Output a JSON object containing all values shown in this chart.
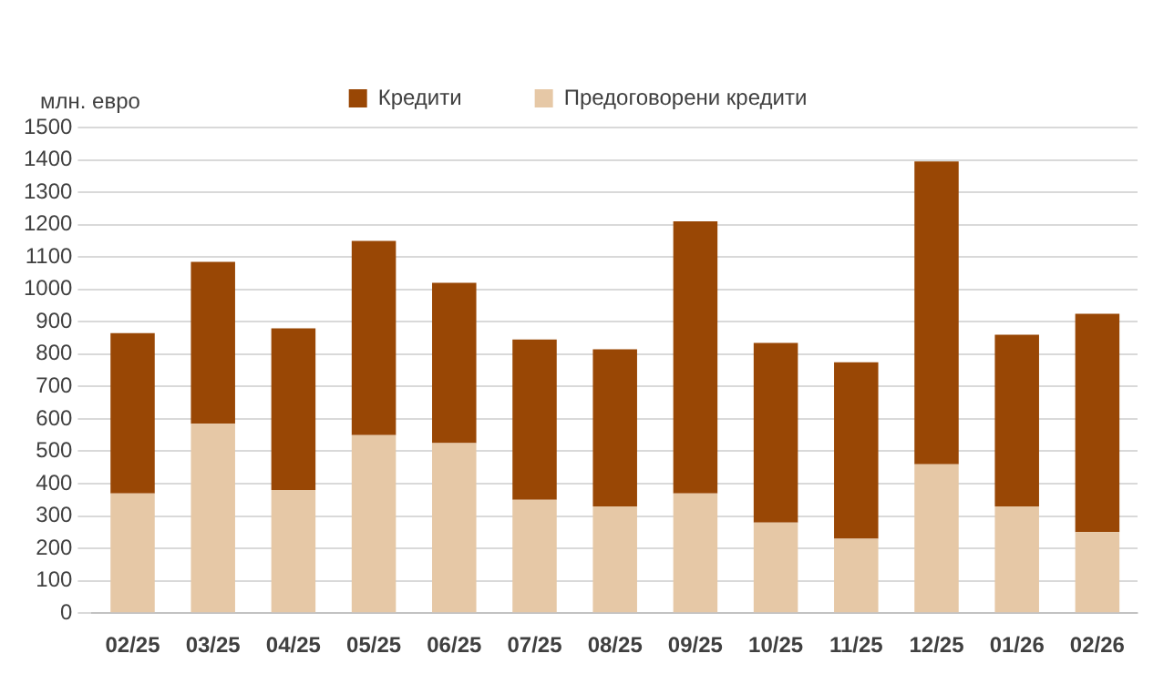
{
  "chart_data": {
    "type": "bar",
    "stacked": true,
    "ylabel": "млн. евро",
    "categories": [
      "02/25",
      "03/25",
      "04/25",
      "05/25",
      "06/25",
      "07/25",
      "08/25",
      "09/25",
      "10/25",
      "11/25",
      "12/25",
      "01/26",
      "02/26"
    ],
    "series": [
      {
        "name": "Предоговорени кредити",
        "color": "#e6c8a6",
        "values": [
          370,
          585,
          380,
          550,
          525,
          350,
          330,
          370,
          280,
          230,
          460,
          330,
          250
        ]
      },
      {
        "name": "Кредити",
        "color": "#994705",
        "values": [
          495,
          500,
          500,
          600,
          495,
          495,
          485,
          840,
          555,
          545,
          935,
          530,
          675
        ]
      }
    ],
    "ylim": [
      0,
      1500
    ],
    "yticks": [
      0,
      100,
      200,
      300,
      400,
      500,
      600,
      700,
      800,
      900,
      1000,
      1100,
      1200,
      1300,
      1400,
      1500
    ],
    "grid": "y",
    "legend": "top"
  }
}
